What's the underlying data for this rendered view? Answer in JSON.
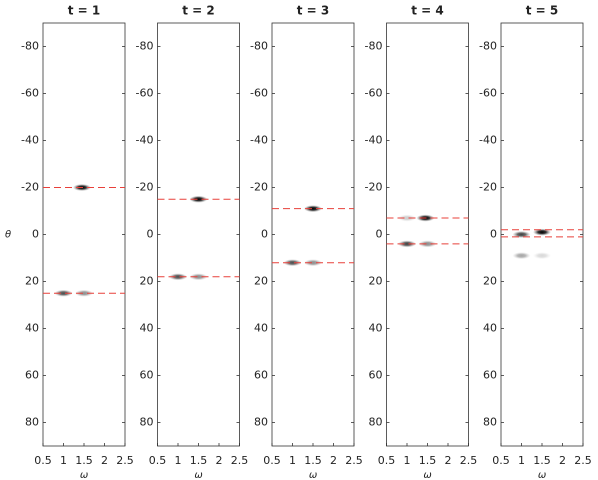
{
  "chart_data": [
    {
      "type": "scatter",
      "title": "t = 1",
      "x_label": "ω",
      "y_label": "θ",
      "xlim": [
        0.5,
        2.5
      ],
      "xticks": [
        0.5,
        1,
        1.5,
        2,
        2.5
      ],
      "ylim": [
        -90,
        90
      ],
      "yticks": [
        -80,
        -60,
        -40,
        -20,
        0,
        20,
        40,
        60,
        80
      ],
      "y_inverted": true,
      "points": {
        "x": [
          1.45,
          1.0,
          1.5
        ],
        "y": [
          -20,
          25,
          25
        ],
        "intensity": [
          1.0,
          0.7,
          0.45
        ]
      },
      "hlines": {
        "values": [
          -20,
          25
        ],
        "color": "#e8403a"
      }
    },
    {
      "type": "scatter",
      "title": "t = 2",
      "x_label": "ω",
      "xlim": [
        0.5,
        2.5
      ],
      "xticks": [
        0.5,
        1,
        1.5,
        2,
        2.5
      ],
      "ylim": [
        -90,
        90
      ],
      "yticks": [
        -80,
        -60,
        -40,
        -20,
        0,
        20,
        40,
        60,
        80
      ],
      "y_inverted": true,
      "points": {
        "x": [
          1.5,
          1.0,
          1.5
        ],
        "y": [
          -15,
          18,
          18
        ],
        "intensity": [
          1.0,
          0.7,
          0.45
        ]
      },
      "hlines": {
        "values": [
          -15,
          18
        ],
        "color": "#e8403a"
      }
    },
    {
      "type": "scatter",
      "title": "t = 3",
      "x_label": "ω",
      "xlim": [
        0.5,
        2.5
      ],
      "xticks": [
        0.5,
        1,
        1.5,
        2,
        2.5
      ],
      "ylim": [
        -90,
        90
      ],
      "yticks": [
        -80,
        -60,
        -40,
        -20,
        0,
        20,
        40,
        60,
        80
      ],
      "y_inverted": true,
      "points": {
        "x": [
          1.5,
          1.0,
          1.5
        ],
        "y": [
          -11,
          12,
          12
        ],
        "intensity": [
          1.0,
          0.7,
          0.45
        ]
      },
      "hlines": {
        "values": [
          -11,
          12
        ],
        "color": "#e8403a"
      }
    },
    {
      "type": "scatter",
      "title": "t = 4",
      "x_label": "ω",
      "xlim": [
        0.5,
        2.5
      ],
      "xticks": [
        0.5,
        1,
        1.5,
        2,
        2.5
      ],
      "ylim": [
        -90,
        90
      ],
      "yticks": [
        -80,
        -60,
        -40,
        -20,
        0,
        20,
        40,
        60,
        80
      ],
      "y_inverted": true,
      "points": {
        "x": [
          1.45,
          1.0,
          1.0,
          1.5
        ],
        "y": [
          -7,
          -7,
          4,
          4
        ],
        "intensity": [
          1.0,
          0.2,
          0.75,
          0.45
        ]
      },
      "hlines": {
        "values": [
          -7,
          4
        ],
        "color": "#e8403a"
      }
    },
    {
      "type": "scatter",
      "title": "t = 5",
      "x_label": "ω",
      "xlim": [
        0.5,
        2.5
      ],
      "xticks": [
        0.5,
        1,
        1.5,
        2,
        2.5
      ],
      "ylim": [
        -90,
        90
      ],
      "yticks": [
        -80,
        -60,
        -40,
        -20,
        0,
        20,
        40,
        60,
        80
      ],
      "y_inverted": true,
      "points": {
        "x": [
          1.0,
          1.5,
          1.0,
          1.5
        ],
        "y": [
          0,
          -1,
          9,
          9
        ],
        "intensity": [
          0.75,
          1.0,
          0.35,
          0.15
        ]
      },
      "hlines": {
        "values": [
          -2,
          1
        ],
        "color": "#e8403a"
      }
    }
  ]
}
